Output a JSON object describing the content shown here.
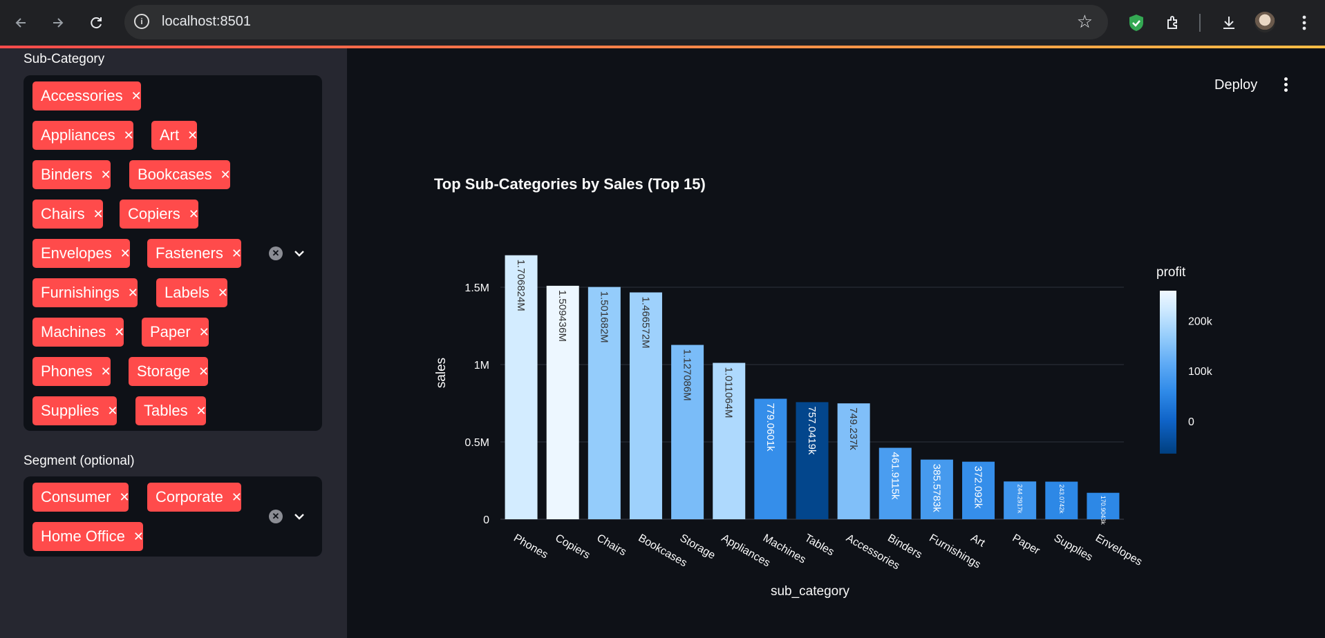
{
  "browser": {
    "url": "localhost:8501",
    "icons": [
      "back-icon",
      "forward-icon",
      "reload-icon",
      "info-icon",
      "star-icon",
      "shield-extension-icon",
      "puzzle-icon",
      "download-icon",
      "profile-avatar",
      "more-icon"
    ]
  },
  "sidebar": {
    "subcategory": {
      "label": "Sub-Category",
      "chips": [
        "Accessories",
        "Appliances",
        "Art",
        "Binders",
        "Bookcases",
        "Chairs",
        "Copiers",
        "Envelopes",
        "Fasteners",
        "Furnishings",
        "Labels",
        "Machines",
        "Paper",
        "Phones",
        "Storage",
        "Supplies",
        "Tables"
      ]
    },
    "segment": {
      "label": "Segment (optional)",
      "chips": [
        "Consumer",
        "Corporate",
        "Home Office"
      ]
    }
  },
  "header": {
    "deploy_label": "Deploy"
  },
  "chart_data": {
    "type": "bar",
    "title": "Top Sub-Categories by Sales (Top 15)",
    "xlabel": "sub_category",
    "ylabel": "sales",
    "categories": [
      "Phones",
      "Copiers",
      "Chairs",
      "Bookcases",
      "Storage",
      "Appliances",
      "Machines",
      "Tables",
      "Accessories",
      "Binders",
      "Furnishings",
      "Art",
      "Paper",
      "Supplies",
      "Envelopes"
    ],
    "values": [
      1706824,
      1509436,
      1501682,
      1466572,
      1127086,
      1011064,
      779060.1,
      757041.9,
      749237,
      461911.5,
      385578.3,
      372092,
      244291.7,
      243074.2,
      170904.3
    ],
    "value_labels": [
      "1.706824M",
      "1.509436M",
      "1.501682M",
      "1.466572M",
      "1.127086M",
      "1.011064M",
      "779.0601k",
      "757.0419k",
      "749.237k",
      "461.9115k",
      "385.5783k",
      "372.092k",
      "244.2917k",
      "243.0742k",
      "170.9043k"
    ],
    "color_metric": "profit",
    "profit": [
      215000,
      255000,
      150000,
      160000,
      125000,
      175000,
      50000,
      -55000,
      130000,
      75000,
      70000,
      50000,
      60000,
      40000,
      40000
    ],
    "yticks": [
      "0",
      "0.5M",
      "1M",
      "1.5M"
    ],
    "ylim": [
      0,
      1800000
    ],
    "colorbar": {
      "title": "profit",
      "ticks": [
        "200k",
        "100k",
        "0"
      ],
      "range": [
        -65000,
        260000
      ]
    },
    "colorscale": [
      "#003f7f",
      "#0f63c7",
      "#2f8ae8",
      "#5eaaf5",
      "#96cdfb",
      "#cde9ff",
      "#f0f8ff"
    ],
    "grid": true,
    "legend": "colorbar-right"
  }
}
